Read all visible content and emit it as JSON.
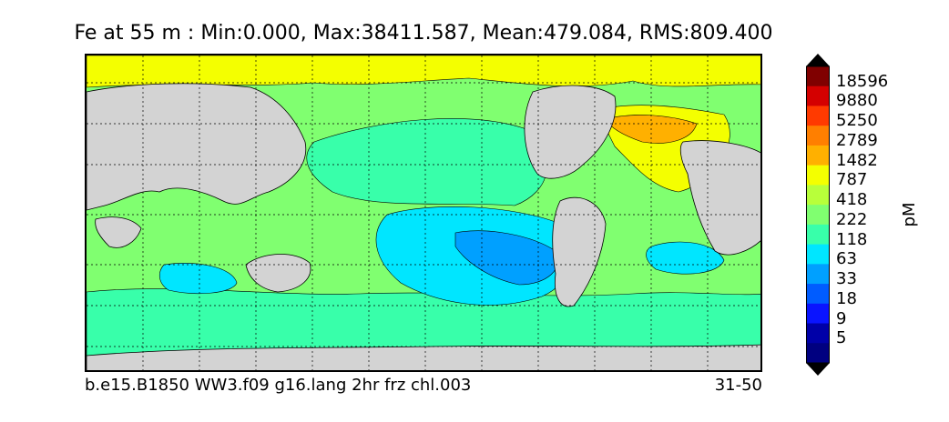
{
  "title": "Fe at 55 m : Min:0.000, Max:38411.587, Mean:479.084, RMS:809.400",
  "run_name": "b.e15.B1850 WW3.f09 g16.lang 2hr frz chl.003",
  "period": "31-50",
  "units": "pM",
  "colorbar": {
    "levels": [
      "18596",
      "9880",
      "5250",
      "2789",
      "1482",
      "787",
      "418",
      "222",
      "118",
      "63",
      "33",
      "18",
      "9",
      "5"
    ],
    "colors": [
      "#800000",
      "#d40000",
      "#ff3a00",
      "#ff7f00",
      "#ffb000",
      "#f4ff00",
      "#b8ff3a",
      "#80ff70",
      "#38ffaa",
      "#00e6ff",
      "#00a0ff",
      "#005cff",
      "#0a14ff",
      "#0000a8",
      "#000080"
    ],
    "extend_top_color": "#000000",
    "extend_bottom_color": "#000000"
  },
  "map": {
    "land_color": "#d3d3d3",
    "grid_style": "dashed",
    "ocean_dominant_colors": [
      "#80ff70",
      "#38ffaa",
      "#00e6ff",
      "#00a0ff",
      "#f4ff00",
      "#ffb000"
    ]
  }
}
